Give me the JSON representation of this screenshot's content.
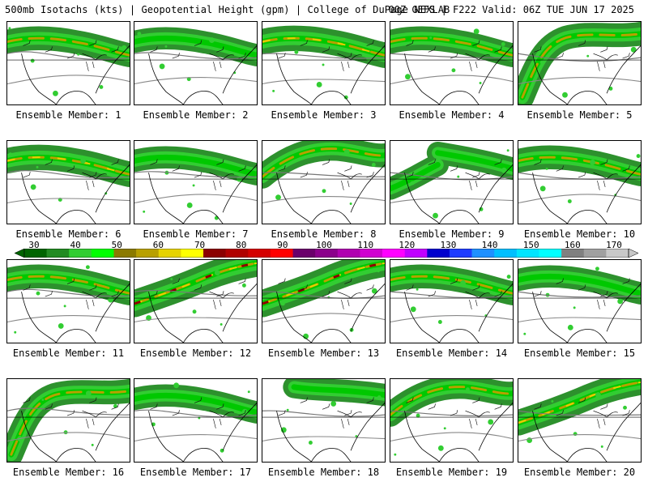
{
  "header": {
    "title_left": "500mb Isotachs (kts) | Geopotential Height (gpm) | College of DuPage NEXLAB",
    "title_right": "00Z GEFS | F222 Valid: 06Z TUE JUN 17 2025"
  },
  "panels": [
    {
      "label": "Ensemble Member: 1",
      "jet": "north",
      "strength": 2
    },
    {
      "label": "Ensemble Member: 2",
      "jet": "north",
      "strength": 1
    },
    {
      "label": "Ensemble Member: 3",
      "jet": "north",
      "strength": 3
    },
    {
      "label": "Ensemble Member: 4",
      "jet": "north",
      "strength": 2
    },
    {
      "label": "Ensemble Member: 5",
      "jet": "west",
      "strength": 2
    },
    {
      "label": "Ensemble Member: 6",
      "jet": "north",
      "strength": 3
    },
    {
      "label": "Ensemble Member: 7",
      "jet": "north",
      "strength": 1
    },
    {
      "label": "Ensemble Member: 8",
      "jet": "arc",
      "strength": 2
    },
    {
      "label": "Ensemble Member: 9",
      "jet": "split",
      "strength": 1
    },
    {
      "label": "Ensemble Member: 10",
      "jet": "north",
      "strength": 2
    },
    {
      "label": "Ensemble Member: 11",
      "jet": "north",
      "strength": 2
    },
    {
      "label": "Ensemble Member: 12",
      "jet": "diagonal",
      "strength": 4
    },
    {
      "label": "Ensemble Member: 13",
      "jet": "diagonal",
      "strength": 4
    },
    {
      "label": "Ensemble Member: 14",
      "jet": "north",
      "strength": 2
    },
    {
      "label": "Ensemble Member: 15",
      "jet": "north",
      "strength": 1
    },
    {
      "label": "Ensemble Member: 16",
      "jet": "west",
      "strength": 2
    },
    {
      "label": "Ensemble Member: 17",
      "jet": "north",
      "strength": 1
    },
    {
      "label": "Ensemble Member: 18",
      "jet": "weak",
      "strength": 1
    },
    {
      "label": "Ensemble Member: 19",
      "jet": "arc",
      "strength": 2
    },
    {
      "label": "Ensemble Member: 20",
      "jet": "diagonal",
      "strength": 3
    }
  ],
  "colorbar": {
    "labels": [
      "30",
      "40",
      "50",
      "60",
      "70",
      "80",
      "90",
      "100",
      "110",
      "120",
      "130",
      "140",
      "150",
      "160",
      "170"
    ],
    "colors": [
      "#006400",
      "#228b22",
      "#32cd32",
      "#00ff00",
      "#8b7a00",
      "#b8a000",
      "#e6d200",
      "#ffff00",
      "#8b0000",
      "#b00000",
      "#d40000",
      "#ff0000",
      "#6a006a",
      "#8b008b",
      "#b000b0",
      "#d000d0",
      "#ff00ff",
      "#c000ff",
      "#0000cd",
      "#1e3cff",
      "#1e90ff",
      "#00bfff",
      "#00e5ff",
      "#00ffff",
      "#808080",
      "#a0a0a0",
      "#c8c8c8"
    ]
  }
}
